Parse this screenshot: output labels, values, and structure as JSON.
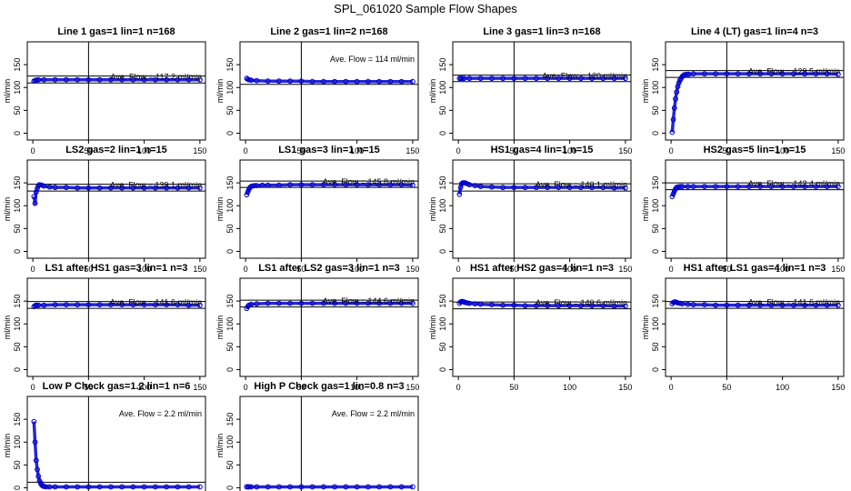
{
  "title": "SPL_061020  Sample Flow Shapes",
  "shared_axes": {
    "ylabel": "ml/min",
    "xlim": [
      -5,
      155
    ],
    "ylim": [
      -15,
      200
    ],
    "xticks": [
      0,
      50,
      100,
      150
    ],
    "yticks": [
      0,
      50,
      100,
      150
    ],
    "vline_x": 50
  },
  "colors": {
    "points": "#0000cc",
    "axes": "#000000",
    "background": "#ffffff"
  },
  "chart_data": [
    {
      "type": "scatter",
      "title": "Line 1 gas=1 lin=1 n=168",
      "annotation": "Ave. Flow =  117.2  ml/min",
      "hlines": [
        125,
        110
      ],
      "series": [
        {
          "x": [
            1,
            2,
            3,
            5,
            10,
            20,
            30,
            40,
            50,
            60,
            70,
            80,
            90,
            100,
            110,
            120,
            130,
            140,
            150
          ],
          "y": [
            114,
            115,
            116,
            117,
            117,
            117,
            117,
            117,
            117,
            117,
            117,
            117,
            117,
            117,
            117,
            117,
            117,
            117,
            117
          ]
        }
      ]
    },
    {
      "type": "scatter",
      "title": "Line 2 gas=1 lin=2 n=168",
      "annotation": "Ave. Flow =  114  ml/min",
      "hlines": [
        107
      ],
      "series": [
        {
          "x": [
            1,
            2,
            3,
            5,
            10,
            20,
            30,
            40,
            50,
            60,
            70,
            80,
            90,
            100,
            110,
            120,
            130,
            140,
            150
          ],
          "y": [
            120,
            118,
            117,
            116,
            115,
            114,
            114,
            114,
            114,
            113,
            113,
            113,
            113,
            113,
            113,
            113,
            113,
            113,
            113
          ]
        }
      ]
    },
    {
      "type": "scatter",
      "title": "Line 3 gas=1 lin=3 n=168",
      "annotation": "Ave. Flow =  120  ml/min",
      "hlines": [
        127,
        113
      ],
      "series": [
        {
          "x": [
            1,
            2,
            3,
            5,
            10,
            20,
            30,
            40,
            50,
            60,
            70,
            80,
            90,
            100,
            110,
            120,
            130,
            140,
            150
          ],
          "y": [
            120,
            120,
            120,
            120,
            120,
            120,
            120,
            120,
            120,
            120,
            120,
            120,
            120,
            120,
            120,
            120,
            120,
            120,
            120
          ]
        }
      ]
    },
    {
      "type": "scatter",
      "title": "Line 4 (LT) gas=1 lin=4 n=3",
      "annotation": "Ave. Flow =  129.5  ml/min",
      "hlines": [
        137,
        122
      ],
      "series": [
        {
          "x": [
            1,
            2,
            3,
            4,
            5,
            6,
            7,
            8,
            9,
            10,
            11,
            12,
            14,
            16,
            20,
            30,
            40,
            50,
            60,
            70,
            80,
            90,
            100,
            110,
            120,
            130,
            140,
            150
          ],
          "y": [
            2,
            30,
            55,
            75,
            90,
            102,
            110,
            116,
            120,
            124,
            126,
            128,
            129,
            129,
            130,
            130,
            130,
            130,
            130,
            130,
            130,
            130,
            130,
            130,
            130,
            130,
            130,
            129
          ]
        }
      ]
    },
    {
      "type": "scatter",
      "title": "LS2 gas=2 lin=1 n=15",
      "annotation": "Ave. Flow =  139.1  ml/min",
      "hlines": [
        147,
        132
      ],
      "series": [
        {
          "x": [
            1,
            2,
            3,
            4,
            5,
            6,
            8,
            10,
            15,
            20,
            30,
            40,
            50,
            60,
            70,
            80,
            90,
            100,
            110,
            120,
            130,
            140,
            150
          ],
          "y": [
            120,
            105,
            130,
            138,
            144,
            146,
            145,
            143,
            141,
            140,
            140,
            139,
            139,
            139,
            139,
            139,
            139,
            139,
            139,
            139,
            139,
            139,
            139
          ]
        }
      ]
    },
    {
      "type": "scatter",
      "title": "LS1 gas=3 lin=1 n=15",
      "annotation": "Ave. Flow =  145.8  ml/min",
      "hlines": [
        154,
        140
      ],
      "series": [
        {
          "x": [
            1,
            2,
            3,
            4,
            5,
            6,
            8,
            10,
            15,
            20,
            30,
            40,
            50,
            60,
            70,
            80,
            90,
            100,
            110,
            120,
            130,
            140,
            150
          ],
          "y": [
            124,
            130,
            136,
            140,
            142,
            143,
            144,
            144,
            145,
            145,
            145,
            146,
            146,
            146,
            146,
            146,
            146,
            146,
            146,
            146,
            146,
            146,
            145
          ]
        }
      ]
    },
    {
      "type": "scatter",
      "title": "HS1 gas=4 lin=1 n=15",
      "annotation": "Ave. Flow =  140.1  ml/min",
      "hlines": [
        148,
        132
      ],
      "series": [
        {
          "x": [
            1,
            2,
            3,
            4,
            5,
            6,
            8,
            10,
            15,
            20,
            30,
            40,
            50,
            60,
            70,
            80,
            90,
            100,
            110,
            120,
            130,
            140,
            150
          ],
          "y": [
            125,
            140,
            148,
            150,
            150,
            150,
            148,
            146,
            144,
            142,
            141,
            140,
            140,
            140,
            140,
            140,
            140,
            140,
            140,
            140,
            140,
            139,
            139
          ]
        }
      ]
    },
    {
      "type": "scatter",
      "title": "HS2 gas=5 lin=1 n=15",
      "annotation": "Ave. Flow =  142.4  ml/min",
      "hlines": [
        150,
        135
      ],
      "series": [
        {
          "x": [
            1,
            2,
            3,
            4,
            5,
            6,
            8,
            10,
            15,
            20,
            30,
            40,
            50,
            60,
            70,
            80,
            90,
            100,
            110,
            120,
            130,
            140,
            150
          ],
          "y": [
            120,
            126,
            132,
            137,
            140,
            141,
            142,
            142,
            142,
            142,
            142,
            142,
            142,
            142,
            142,
            142,
            142,
            142,
            142,
            142,
            142,
            142,
            142
          ]
        }
      ]
    },
    {
      "type": "scatter",
      "title": "LS1 after HS1 gas=3 lin=1 n=3",
      "annotation": "Ave. Flow =  141.6  ml/min",
      "hlines": [
        149,
        134
      ],
      "series": [
        {
          "x": [
            1,
            2,
            3,
            5,
            10,
            20,
            30,
            40,
            50,
            60,
            70,
            80,
            90,
            100,
            110,
            120,
            130,
            140,
            150
          ],
          "y": [
            138,
            140,
            141,
            141,
            141,
            142,
            142,
            142,
            142,
            142,
            142,
            142,
            142,
            142,
            142,
            142,
            142,
            141,
            141
          ]
        }
      ]
    },
    {
      "type": "scatter",
      "title": "LS1 after LS2 gas=3 lin=1 n=3",
      "annotation": "Ave. Flow =  144.6  ml/min",
      "hlines": [
        152,
        137
      ],
      "series": [
        {
          "x": [
            1,
            2,
            3,
            5,
            10,
            20,
            30,
            40,
            50,
            60,
            70,
            80,
            90,
            100,
            110,
            120,
            130,
            140,
            150
          ],
          "y": [
            134,
            138,
            141,
            143,
            144,
            145,
            145,
            145,
            145,
            145,
            145,
            145,
            145,
            145,
            145,
            145,
            145,
            145,
            145
          ]
        }
      ]
    },
    {
      "type": "scatter",
      "title": "HS1 after HS2 gas=4 lin=1 n=3",
      "annotation": "Ave. Flow =  140.6  ml/min",
      "hlines": [
        148,
        133
      ],
      "series": [
        {
          "x": [
            1,
            2,
            3,
            4,
            5,
            6,
            8,
            10,
            15,
            20,
            30,
            40,
            50,
            60,
            70,
            80,
            90,
            100,
            110,
            120,
            130,
            140,
            150
          ],
          "y": [
            145,
            148,
            149,
            149,
            148,
            147,
            146,
            145,
            144,
            143,
            142,
            141,
            141,
            140,
            140,
            140,
            140,
            140,
            140,
            140,
            140,
            139,
            139
          ]
        }
      ]
    },
    {
      "type": "scatter",
      "title": "HS1 after LS1 gas=4 lin=1 n=3",
      "annotation": "Ave. Flow =  141.6  ml/min",
      "hlines": [
        149,
        134
      ],
      "series": [
        {
          "x": [
            1,
            2,
            3,
            4,
            5,
            6,
            8,
            10,
            15,
            20,
            30,
            40,
            50,
            60,
            70,
            80,
            90,
            100,
            110,
            120,
            130,
            140,
            150
          ],
          "y": [
            144,
            147,
            148,
            148,
            147,
            146,
            145,
            144,
            143,
            142,
            142,
            141,
            141,
            141,
            141,
            141,
            141,
            141,
            141,
            141,
            141,
            141,
            141
          ]
        }
      ]
    },
    {
      "type": "scatter",
      "title": "Low P Check gas=1.2 lin=1 n=6",
      "annotation": "Ave. Flow =  2.2  ml/min",
      "hlines": [
        12
      ],
      "series": [
        {
          "x": [
            1,
            2,
            3,
            4,
            5,
            6,
            7,
            8,
            9,
            10,
            12,
            15,
            20,
            30,
            40,
            50,
            60,
            70,
            80,
            90,
            100,
            110,
            120,
            130,
            140,
            150
          ],
          "y": [
            145,
            100,
            60,
            40,
            25,
            15,
            10,
            6,
            4,
            3,
            2,
            2,
            2,
            2,
            2,
            2,
            2,
            2,
            2,
            2,
            2,
            2,
            2,
            2,
            2,
            2
          ]
        }
      ]
    },
    {
      "type": "scatter",
      "title": "High P Check gas=1 lin=0.8 n=3",
      "annotation": "Ave. Flow =  2.2  ml/min",
      "hlines": [],
      "series": [
        {
          "x": [
            1,
            2,
            3,
            5,
            10,
            20,
            30,
            40,
            50,
            60,
            70,
            80,
            90,
            100,
            110,
            120,
            130,
            140,
            150
          ],
          "y": [
            2,
            2,
            2,
            2,
            2,
            2,
            2,
            2,
            2,
            2,
            2,
            2,
            2,
            2,
            2,
            2,
            2,
            2,
            2
          ]
        }
      ]
    }
  ]
}
